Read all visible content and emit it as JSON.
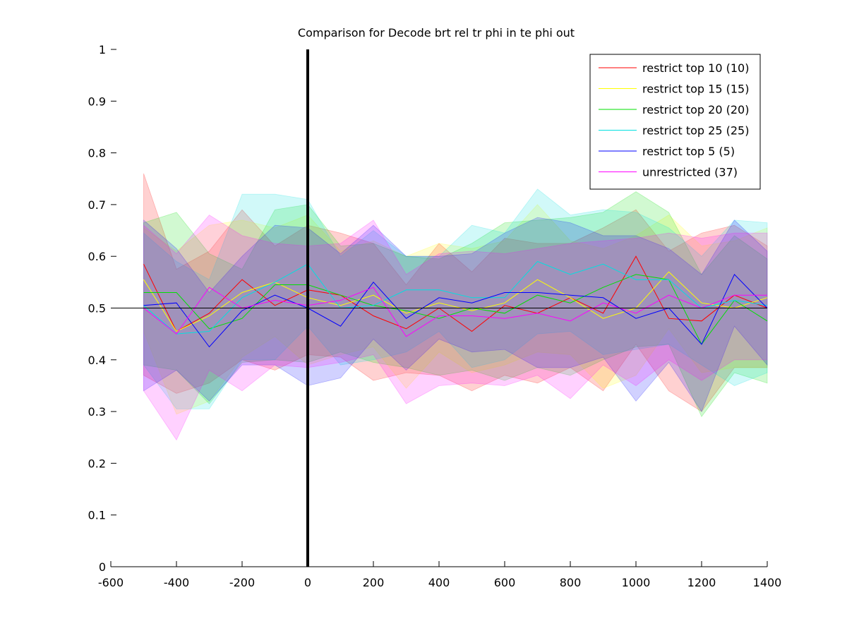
{
  "chart_data": {
    "type": "line",
    "title": "Comparison for Decode brt rel tr phi in te phi out",
    "xlabel": "",
    "ylabel": "",
    "xlim": [
      -600,
      1400
    ],
    "ylim": [
      0,
      1
    ],
    "x_ticks": [
      "-600",
      "-400",
      "-200",
      "0",
      "200",
      "400",
      "600",
      "800",
      "1000",
      "1200",
      "1400"
    ],
    "y_ticks": [
      "0",
      "0.1",
      "0.2",
      "0.3",
      "0.4",
      "0.5",
      "0.6",
      "0.7",
      "0.8",
      "0.9",
      "1"
    ],
    "grid": false,
    "legend_position": "top-right",
    "reference_lines": {
      "horizontal_y": 0.5,
      "vertical_x": 0
    },
    "x": [
      -500,
      -400,
      -300,
      -200,
      -100,
      0,
      100,
      200,
      300,
      400,
      500,
      600,
      700,
      800,
      900,
      1000,
      1100,
      1200,
      1300,
      1400
    ],
    "series": [
      {
        "name": "restrict top 10 (10)",
        "color": "#ff0000",
        "values": [
          0.585,
          0.455,
          0.49,
          0.555,
          0.505,
          0.535,
          0.525,
          0.485,
          0.46,
          0.5,
          0.455,
          0.505,
          0.49,
          0.52,
          0.49,
          0.6,
          0.48,
          0.475,
          0.525,
          0.5
        ],
        "upper": [
          0.76,
          0.575,
          0.61,
          0.69,
          0.62,
          0.66,
          0.645,
          0.625,
          0.545,
          0.625,
          0.57,
          0.635,
          0.625,
          0.625,
          0.655,
          0.69,
          0.61,
          0.645,
          0.66,
          0.62
        ],
        "lower": [
          0.37,
          0.335,
          0.355,
          0.4,
          0.38,
          0.41,
          0.405,
          0.36,
          0.375,
          0.37,
          0.34,
          0.37,
          0.355,
          0.385,
          0.34,
          0.43,
          0.34,
          0.3,
          0.385,
          0.385
        ]
      },
      {
        "name": "restrict top 15 (15)",
        "color": "#ffff00",
        "values": [
          0.555,
          0.455,
          0.485,
          0.53,
          0.55,
          0.52,
          0.505,
          0.525,
          0.49,
          0.51,
          0.495,
          0.51,
          0.555,
          0.52,
          0.48,
          0.5,
          0.57,
          0.51,
          0.5,
          0.52
        ],
        "upper": [
          0.655,
          0.61,
          0.66,
          0.67,
          0.655,
          0.68,
          0.61,
          0.63,
          0.6,
          0.625,
          0.615,
          0.63,
          0.7,
          0.63,
          0.615,
          0.64,
          0.68,
          0.62,
          0.63,
          0.655
        ],
        "lower": [
          0.455,
          0.295,
          0.32,
          0.405,
          0.445,
          0.39,
          0.41,
          0.425,
          0.345,
          0.415,
          0.375,
          0.39,
          0.415,
          0.41,
          0.345,
          0.37,
          0.46,
          0.375,
          0.385,
          0.385
        ]
      },
      {
        "name": "restrict top 20 (20)",
        "color": "#00e000",
        "values": [
          0.53,
          0.53,
          0.46,
          0.48,
          0.545,
          0.545,
          0.525,
          0.505,
          0.495,
          0.48,
          0.5,
          0.49,
          0.525,
          0.51,
          0.54,
          0.565,
          0.555,
          0.43,
          0.515,
          0.475
        ],
        "upper": [
          0.665,
          0.685,
          0.605,
          0.575,
          0.69,
          0.7,
          0.62,
          0.625,
          0.6,
          0.595,
          0.625,
          0.665,
          0.67,
          0.675,
          0.685,
          0.725,
          0.685,
          0.565,
          0.64,
          0.595
        ],
        "lower": [
          0.39,
          0.38,
          0.315,
          0.395,
          0.4,
          0.395,
          0.415,
          0.395,
          0.385,
          0.37,
          0.38,
          0.36,
          0.385,
          0.37,
          0.4,
          0.425,
          0.43,
          0.29,
          0.375,
          0.355
        ]
      },
      {
        "name": "restrict top 25 (25)",
        "color": "#00e0e0",
        "values": [
          0.505,
          0.45,
          0.455,
          0.52,
          0.55,
          0.585,
          0.5,
          0.505,
          0.535,
          0.535,
          0.52,
          0.52,
          0.59,
          0.565,
          0.585,
          0.555,
          0.555,
          0.5,
          0.515,
          0.505
        ],
        "upper": [
          0.645,
          0.59,
          0.555,
          0.72,
          0.72,
          0.71,
          0.6,
          0.65,
          0.6,
          0.6,
          0.66,
          0.645,
          0.73,
          0.68,
          0.69,
          0.685,
          0.655,
          0.6,
          0.67,
          0.665
        ],
        "lower": [
          0.39,
          0.305,
          0.305,
          0.4,
          0.4,
          0.465,
          0.39,
          0.4,
          0.415,
          0.455,
          0.385,
          0.4,
          0.45,
          0.455,
          0.41,
          0.42,
          0.43,
          0.39,
          0.35,
          0.375
        ]
      },
      {
        "name": "restrict top 5 (5)",
        "color": "#0000ff",
        "values": [
          0.505,
          0.51,
          0.425,
          0.495,
          0.525,
          0.5,
          0.465,
          0.55,
          0.48,
          0.52,
          0.51,
          0.53,
          0.53,
          0.525,
          0.52,
          0.48,
          0.5,
          0.43,
          0.565,
          0.5
        ],
        "upper": [
          0.67,
          0.615,
          0.53,
          0.6,
          0.66,
          0.655,
          0.605,
          0.66,
          0.6,
          0.6,
          0.605,
          0.645,
          0.675,
          0.665,
          0.64,
          0.64,
          0.615,
          0.565,
          0.67,
          0.61
        ],
        "lower": [
          0.34,
          0.38,
          0.32,
          0.39,
          0.39,
          0.35,
          0.365,
          0.44,
          0.38,
          0.44,
          0.415,
          0.42,
          0.385,
          0.385,
          0.405,
          0.32,
          0.395,
          0.3,
          0.465,
          0.39
        ]
      },
      {
        "name": "unrestricted (37)",
        "color": "#ff00ff",
        "values": [
          0.5,
          0.45,
          0.54,
          0.5,
          0.515,
          0.505,
          0.515,
          0.54,
          0.445,
          0.485,
          0.485,
          0.48,
          0.49,
          0.475,
          0.51,
          0.49,
          0.525,
          0.5,
          0.525,
          0.525
        ],
        "upper": [
          0.66,
          0.605,
          0.68,
          0.64,
          0.625,
          0.62,
          0.625,
          0.67,
          0.565,
          0.605,
          0.61,
          0.605,
          0.615,
          0.625,
          0.63,
          0.635,
          0.645,
          0.635,
          0.645,
          0.645
        ],
        "lower": [
          0.34,
          0.245,
          0.38,
          0.34,
          0.39,
          0.385,
          0.395,
          0.41,
          0.315,
          0.35,
          0.355,
          0.35,
          0.37,
          0.325,
          0.39,
          0.35,
          0.4,
          0.36,
          0.4,
          0.4
        ]
      }
    ]
  }
}
